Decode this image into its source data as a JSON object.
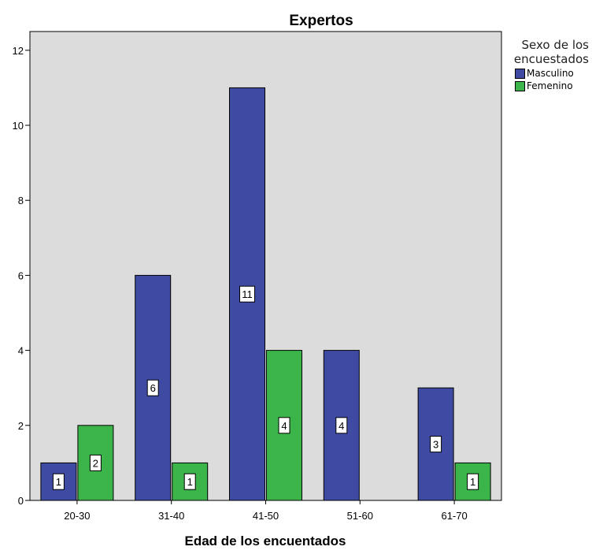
{
  "chart_data": {
    "type": "bar",
    "title": "Expertos",
    "xlabel": "Edad de los encuentados",
    "ylabel": "",
    "categories": [
      "20-30",
      "31-40",
      "41-50",
      "51-60",
      "61-70"
    ],
    "series": [
      {
        "name": "Masculino",
        "color": "#3f4ba3",
        "values": [
          1,
          6,
          11,
          4,
          3
        ]
      },
      {
        "name": "Femenino",
        "color": "#3bb54a",
        "values": [
          2,
          1,
          4,
          null,
          1
        ]
      }
    ],
    "ylim": [
      0,
      12.5
    ],
    "yticks": [
      0,
      2,
      4,
      6,
      8,
      10,
      12
    ],
    "legend_title": "Sexo de los encuestados",
    "legend_position": "right",
    "plot_background": "#dcdcdc",
    "grid": false
  }
}
